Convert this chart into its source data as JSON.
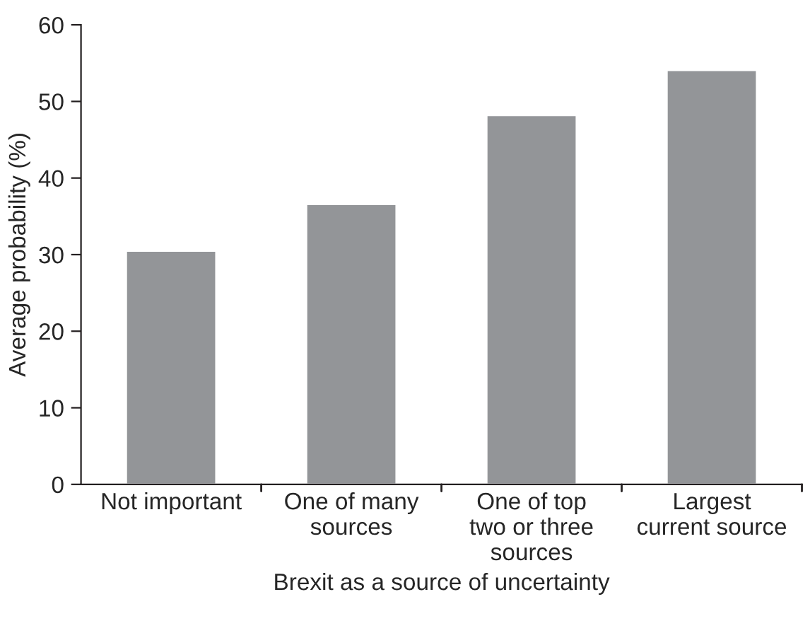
{
  "chart_data": {
    "type": "bar",
    "xlabel": "Brexit as a source of uncertainty",
    "ylabel": "Average probability (%)",
    "categories": [
      "Not important",
      "One of many\nsources",
      "One of top\ntwo or three\nsources",
      "Largest\ncurrent source"
    ],
    "values": [
      30.5,
      36.6,
      48.2,
      54.1
    ],
    "color": "#939598",
    "ylim": [
      0,
      60
    ],
    "yticks": [
      0,
      10,
      20,
      30,
      40,
      50,
      60
    ],
    "grid": false,
    "legend": false
  }
}
